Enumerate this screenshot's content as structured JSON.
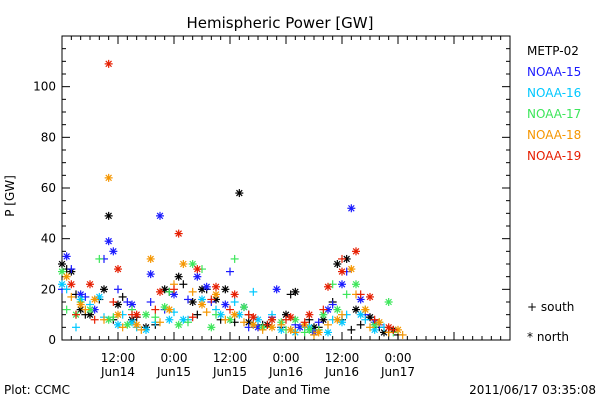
{
  "chart_data": {
    "type": "scatter",
    "title": "Hemispheric Power [GW]",
    "xlabel": "Date and Time",
    "ylabel": "P [GW]",
    "ylim": [
      0,
      120
    ],
    "xlim": [
      0,
      96
    ],
    "y_ticks": [
      0,
      20,
      40,
      60,
      80,
      100
    ],
    "x_ticks": [
      {
        "x": 12,
        "time": "12:00",
        "date": "Jun14"
      },
      {
        "x": 24,
        "time": "0:00",
        "date": "Jun15"
      },
      {
        "x": 36,
        "time": "12:00",
        "date": "Jun15"
      },
      {
        "x": 48,
        "time": "0:00",
        "date": "Jun16"
      },
      {
        "x": 60,
        "time": "12:00",
        "date": "Jun16"
      },
      {
        "x": 72,
        "time": "0:00",
        "date": "Jun17"
      }
    ],
    "legend_placement": "right",
    "series": [
      {
        "name": "METP-02",
        "color": "#000000",
        "south": [
          [
            1,
            28
          ],
          [
            3,
            18
          ],
          [
            5,
            10
          ],
          [
            8,
            16
          ],
          [
            11,
            8
          ],
          [
            13,
            17
          ],
          [
            16,
            9
          ],
          [
            20,
            6
          ],
          [
            23,
            19
          ],
          [
            26,
            22
          ],
          [
            29,
            10
          ],
          [
            31,
            20
          ],
          [
            34,
            8
          ],
          [
            37,
            7
          ],
          [
            40,
            10
          ],
          [
            43,
            6
          ],
          [
            47,
            5
          ],
          [
            49,
            18
          ],
          [
            53,
            8
          ],
          [
            55,
            5
          ],
          [
            58,
            15
          ],
          [
            60,
            8
          ],
          [
            62,
            4
          ],
          [
            64,
            6
          ],
          [
            68,
            5
          ],
          [
            70,
            3
          ],
          [
            72,
            2
          ]
        ],
        "north": [
          [
            0,
            30
          ],
          [
            2,
            27
          ],
          [
            4,
            12
          ],
          [
            6,
            10
          ],
          [
            9,
            20
          ],
          [
            10,
            49
          ],
          [
            12,
            14
          ],
          [
            15,
            8
          ],
          [
            18,
            5
          ],
          [
            22,
            20
          ],
          [
            25,
            25
          ],
          [
            28,
            15
          ],
          [
            30,
            20
          ],
          [
            33,
            16
          ],
          [
            35,
            20
          ],
          [
            38,
            58
          ],
          [
            40,
            7
          ],
          [
            44,
            6
          ],
          [
            48,
            10
          ],
          [
            50,
            19
          ],
          [
            54,
            5
          ],
          [
            56,
            8
          ],
          [
            59,
            30
          ],
          [
            61,
            32
          ],
          [
            63,
            12
          ],
          [
            66,
            9
          ],
          [
            69,
            3
          ],
          [
            71,
            4
          ]
        ]
      },
      {
        "name": "NOAA-15",
        "color": "#1a1aff",
        "south": [
          [
            0,
            20
          ],
          [
            2,
            28
          ],
          [
            5,
            17
          ],
          [
            9,
            32
          ],
          [
            12,
            20
          ],
          [
            14,
            15
          ],
          [
            19,
            15
          ],
          [
            22,
            12
          ],
          [
            27,
            16
          ],
          [
            32,
            15
          ],
          [
            36,
            27
          ],
          [
            40,
            5
          ],
          [
            45,
            9
          ],
          [
            50,
            6
          ],
          [
            55,
            7
          ],
          [
            58,
            14
          ],
          [
            61,
            27
          ],
          [
            65,
            10
          ],
          [
            68,
            6
          ]
        ],
        "north": [
          [
            1,
            33
          ],
          [
            4,
            18
          ],
          [
            7,
            12
          ],
          [
            10,
            39
          ],
          [
            11,
            35
          ],
          [
            15,
            14
          ],
          [
            19,
            26
          ],
          [
            21,
            49
          ],
          [
            24,
            18
          ],
          [
            29,
            25
          ],
          [
            31,
            21
          ],
          [
            35,
            14
          ],
          [
            39,
            13
          ],
          [
            42,
            5
          ],
          [
            46,
            20
          ],
          [
            51,
            5
          ],
          [
            54,
            3
          ],
          [
            57,
            12
          ],
          [
            60,
            22
          ],
          [
            62,
            52
          ],
          [
            64,
            16
          ],
          [
            67,
            7
          ]
        ]
      },
      {
        "name": "NOAA-16",
        "color": "#00c8ff",
        "south": [
          [
            1,
            20
          ],
          [
            3,
            5
          ],
          [
            6,
            14
          ],
          [
            9,
            9
          ],
          [
            13,
            10
          ],
          [
            16,
            5
          ],
          [
            20,
            7
          ],
          [
            24,
            11
          ],
          [
            27,
            8
          ],
          [
            33,
            12
          ],
          [
            37,
            15
          ],
          [
            41,
            19
          ],
          [
            45,
            10
          ],
          [
            49,
            4
          ],
          [
            52,
            5
          ],
          [
            55,
            4
          ],
          [
            58,
            8
          ],
          [
            61,
            10
          ],
          [
            65,
            8
          ],
          [
            69,
            5
          ]
        ],
        "north": [
          [
            0,
            22
          ],
          [
            4,
            16
          ],
          [
            8,
            17
          ],
          [
            12,
            6
          ],
          [
            15,
            7
          ],
          [
            18,
            4
          ],
          [
            23,
            8
          ],
          [
            26,
            8
          ],
          [
            30,
            16
          ],
          [
            34,
            10
          ],
          [
            38,
            10
          ],
          [
            42,
            8
          ],
          [
            47,
            4
          ],
          [
            50,
            3
          ],
          [
            53,
            5
          ],
          [
            57,
            3
          ],
          [
            60,
            7
          ],
          [
            64,
            10
          ],
          [
            67,
            4
          ]
        ]
      },
      {
        "name": "NOAA-17",
        "color": "#3ce65a",
        "south": [
          [
            1,
            12
          ],
          [
            4,
            15
          ],
          [
            8,
            32
          ],
          [
            11,
            9
          ],
          [
            15,
            12
          ],
          [
            20,
            9
          ],
          [
            23,
            19
          ],
          [
            27,
            7
          ],
          [
            30,
            28
          ],
          [
            33,
            10
          ],
          [
            37,
            32
          ],
          [
            41,
            6
          ],
          [
            45,
            8
          ],
          [
            48,
            4
          ],
          [
            52,
            3
          ],
          [
            55,
            4
          ],
          [
            58,
            22
          ],
          [
            61,
            18
          ],
          [
            65,
            12
          ],
          [
            68,
            7
          ],
          [
            71,
            3
          ]
        ],
        "north": [
          [
            0,
            27
          ],
          [
            3,
            10
          ],
          [
            6,
            12
          ],
          [
            10,
            8
          ],
          [
            14,
            6
          ],
          [
            18,
            10
          ],
          [
            22,
            13
          ],
          [
            25,
            6
          ],
          [
            28,
            30
          ],
          [
            32,
            5
          ],
          [
            36,
            8
          ],
          [
            39,
            13
          ],
          [
            43,
            5
          ],
          [
            47,
            7
          ],
          [
            50,
            8
          ],
          [
            53,
            4
          ],
          [
            56,
            10
          ],
          [
            59,
            12
          ],
          [
            63,
            22
          ],
          [
            67,
            6
          ],
          [
            70,
            15
          ]
        ]
      },
      {
        "name": "NOAA-18",
        "color": "#f59600",
        "south": [
          [
            2,
            17
          ],
          [
            5,
            12
          ],
          [
            9,
            8
          ],
          [
            13,
            5
          ],
          [
            17,
            4
          ],
          [
            21,
            7
          ],
          [
            24,
            22
          ],
          [
            28,
            19
          ],
          [
            31,
            11
          ],
          [
            35,
            8
          ],
          [
            39,
            7
          ],
          [
            43,
            4
          ],
          [
            47,
            6
          ],
          [
            50,
            3
          ],
          [
            54,
            2
          ],
          [
            57,
            6
          ],
          [
            60,
            10
          ],
          [
            63,
            18
          ],
          [
            66,
            5
          ],
          [
            70,
            3
          ],
          [
            73,
            2
          ]
        ],
        "north": [
          [
            1,
            25
          ],
          [
            4,
            14
          ],
          [
            7,
            16
          ],
          [
            10,
            64
          ],
          [
            12,
            10
          ],
          [
            16,
            6
          ],
          [
            19,
            32
          ],
          [
            23,
            12
          ],
          [
            26,
            30
          ],
          [
            30,
            14
          ],
          [
            33,
            18
          ],
          [
            37,
            10
          ],
          [
            41,
            6
          ],
          [
            45,
            5
          ],
          [
            49,
            4
          ],
          [
            52,
            6
          ],
          [
            55,
            3
          ],
          [
            59,
            8
          ],
          [
            62,
            28
          ],
          [
            65,
            12
          ],
          [
            68,
            7
          ],
          [
            72,
            4
          ]
        ]
      },
      {
        "name": "NOAA-19",
        "color": "#e61e00",
        "south": [
          [
            3,
            10
          ],
          [
            7,
            8
          ],
          [
            11,
            15
          ],
          [
            15,
            10
          ],
          [
            20,
            12
          ],
          [
            24,
            20
          ],
          [
            28,
            9
          ],
          [
            32,
            16
          ],
          [
            36,
            12
          ],
          [
            40,
            10
          ],
          [
            44,
            6
          ],
          [
            48,
            8
          ],
          [
            52,
            7
          ],
          [
            56,
            12
          ],
          [
            60,
            32
          ],
          [
            64,
            18
          ],
          [
            67,
            8
          ],
          [
            71,
            4
          ]
        ],
        "north": [
          [
            2,
            22
          ],
          [
            6,
            22
          ],
          [
            10,
            109
          ],
          [
            12,
            28
          ],
          [
            16,
            10
          ],
          [
            21,
            19
          ],
          [
            25,
            42
          ],
          [
            29,
            28
          ],
          [
            33,
            21
          ],
          [
            37,
            18
          ],
          [
            41,
            9
          ],
          [
            45,
            8
          ],
          [
            49,
            9
          ],
          [
            53,
            10
          ],
          [
            57,
            21
          ],
          [
            60,
            27
          ],
          [
            63,
            35
          ],
          [
            66,
            17
          ],
          [
            70,
            5
          ]
        ]
      }
    ],
    "markers_legend": [
      {
        "symbol": "+",
        "label": "south"
      },
      {
        "symbol": "*",
        "label": "north"
      }
    ]
  },
  "footer": {
    "left": "Plot: CCMC",
    "right": "2011/06/17 03:35:08"
  }
}
